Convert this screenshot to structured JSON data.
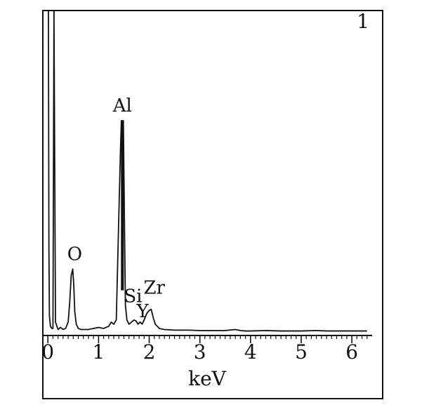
{
  "chart_data": {
    "type": "line",
    "panel_label": "1",
    "xlabel": "keV",
    "ylabel": "",
    "xlim": [
      -0.1,
      6.4
    ],
    "ylim": [
      0,
      100
    ],
    "xticks": [
      0,
      1,
      2,
      3,
      4,
      5,
      6
    ],
    "xtick_labels": [
      "0",
      "1",
      "2",
      "3",
      "4",
      "5",
      "6"
    ],
    "grid": false,
    "legend": "none",
    "line_color": "#111111",
    "series": [
      {
        "x": [
          0.0,
          0.01,
          0.02,
          0.03,
          0.05,
          0.08,
          0.1,
          0.12,
          0.15,
          0.2,
          0.25,
          0.3,
          0.35,
          0.4,
          0.43,
          0.46,
          0.49,
          0.51,
          0.53,
          0.56,
          0.6,
          0.65,
          0.7,
          0.8,
          0.9,
          1.0,
          1.1,
          1.2,
          1.25,
          1.3,
          1.35,
          1.4,
          1.43,
          1.45,
          1.47,
          1.49,
          1.51,
          1.53,
          1.56,
          1.6,
          1.65,
          1.7,
          1.74,
          1.78,
          1.82,
          1.86,
          1.9,
          1.95,
          2.0,
          2.04,
          2.08,
          2.12,
          2.16,
          2.2,
          2.3,
          2.5,
          2.8,
          3.0,
          3.2,
          3.5,
          3.7,
          3.8,
          3.9,
          4.0,
          4.3,
          4.6,
          5.0,
          5.3,
          5.5,
          6.0,
          6.3
        ],
        "y": [
          100,
          100,
          40,
          8,
          3,
          2,
          2,
          100,
          5,
          1.5,
          2.5,
          1.5,
          2,
          5,
          14,
          27,
          30,
          23,
          10,
          4,
          2,
          1.5,
          1.5,
          1.5,
          2,
          2.5,
          2,
          3,
          5,
          4,
          6,
          55,
          84,
          100,
          100,
          100,
          55,
          13,
          6,
          4,
          5,
          6,
          5.5,
          4,
          5,
          4,
          6,
          9,
          10.5,
          11,
          7,
          4,
          3,
          2,
          1.5,
          1.2,
          1.2,
          1.0,
          1.0,
          1.0,
          1.5,
          1.0,
          0.8,
          0.8,
          1.0,
          0.8,
          0.8,
          1.0,
          0.8,
          0.8,
          0.8
        ]
      }
    ],
    "annotations": [
      {
        "text": "O",
        "x": 0.53,
        "y": 33
      },
      {
        "text": "Al",
        "x": 1.47,
        "y": 103
      },
      {
        "text": "Si",
        "x": 1.68,
        "y": 13
      },
      {
        "text": "Y",
        "x": 1.87,
        "y": 6
      },
      {
        "text": "Zr",
        "x": 2.1,
        "y": 17
      }
    ]
  }
}
